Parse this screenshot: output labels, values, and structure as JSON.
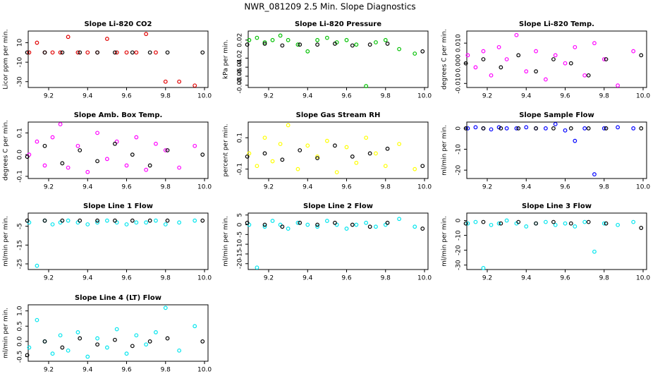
{
  "title": "NWR_081209  2.5 Min. Slope Diagnostics",
  "chart_data": [
    {
      "type": "scatter",
      "title": "Slope Li-820 CO2",
      "y_label": "Licor ppm per min.",
      "xlim": [
        9.095,
        10.018
      ],
      "xticks": [
        9.2,
        9.4,
        9.6,
        9.8,
        {
          "value": 10,
          "label": "10.0"
        }
      ],
      "ylim": [
        -36,
        22
      ],
      "yticks": [
        -30,
        -10,
        10
      ],
      "series": [
        {
          "color": "#e00000",
          "x": [
            9.1,
            9.14,
            9.18,
            9.22,
            9.26,
            9.3,
            9.35,
            9.4,
            9.45,
            9.5,
            9.55,
            9.6,
            9.65,
            9.7,
            9.75,
            9.8,
            9.87,
            9.95
          ],
          "values": [
            0,
            10,
            0,
            0,
            0,
            16,
            0,
            0,
            0,
            14,
            0,
            0,
            0,
            19,
            0,
            -30,
            -30,
            -34
          ]
        },
        {
          "color": "#000000",
          "x": [
            9.09,
            9.18,
            9.27,
            9.36,
            9.45,
            9.54,
            9.63,
            9.72,
            9.81,
            9.99
          ],
          "values": [
            0,
            0,
            0,
            0,
            0,
            0,
            0,
            0,
            0,
            0
          ]
        }
      ]
    },
    {
      "type": "scatter",
      "title": "Slope Li-820 Pressure",
      "y_label": "kPa per min.",
      "xlim": [
        9.095,
        10.018
      ],
      "xticks": [
        9.2,
        9.4,
        9.6,
        9.8,
        {
          "value": 10,
          "label": "10.0"
        }
      ],
      "ylim": [
        -0.085,
        0.04
      ],
      "yticks": [
        -0.08,
        -0.06,
        -0.04,
        -0.02,
        0.02
      ],
      "series": [
        {
          "color": "#00c000",
          "x": [
            9.1,
            9.14,
            9.18,
            9.22,
            9.26,
            9.3,
            9.35,
            9.4,
            9.45,
            9.5,
            9.55,
            9.6,
            9.65,
            9.7,
            9.75,
            9.8,
            9.87,
            9.95
          ],
          "values": [
            0.02,
            0.025,
            0.015,
            0.02,
            0.03,
            0.02,
            0.01,
            -0.005,
            0.02,
            0.025,
            0.015,
            0.02,
            0.01,
            -0.082,
            0.015,
            0.02,
            0.0,
            -0.01
          ]
        },
        {
          "color": "#000000",
          "x": [
            9.09,
            9.18,
            9.27,
            9.36,
            9.45,
            9.54,
            9.63,
            9.72,
            9.81,
            9.99
          ],
          "values": [
            0.01,
            0.012,
            0.008,
            0.01,
            0.01,
            0.012,
            0.008,
            0.01,
            0.012,
            -0.005
          ]
        }
      ]
    },
    {
      "type": "scatter",
      "title": "Slope Li-820 Temp.",
      "y_label": "degrees C per min.",
      "xlim": [
        9.095,
        10.018
      ],
      "xticks": [
        9.2,
        9.4,
        9.6,
        9.8,
        {
          "value": 10,
          "label": "10.0"
        }
      ],
      "ylim": [
        -0.012,
        0.016
      ],
      "yticks": [
        {
          "value": -0.01,
          "label": "-0.010"
        },
        {
          "value": 0,
          "label": "0.000"
        },
        {
          "value": 0.01,
          "label": "0.010"
        }
      ],
      "series": [
        {
          "color": "#ff00ff",
          "x": [
            9.1,
            9.14,
            9.18,
            9.22,
            9.26,
            9.3,
            9.35,
            9.4,
            9.45,
            9.5,
            9.55,
            9.6,
            9.65,
            9.7,
            9.75,
            9.8,
            9.87,
            9.95
          ],
          "values": [
            0.004,
            -0.002,
            0.006,
            -0.006,
            0.008,
            0.002,
            0.014,
            -0.004,
            0.006,
            -0.008,
            0.004,
            0.0,
            0.008,
            -0.006,
            0.01,
            0.002,
            -0.011,
            0.006
          ]
        },
        {
          "color": "#000000",
          "x": [
            9.09,
            9.18,
            9.27,
            9.36,
            9.45,
            9.54,
            9.63,
            9.72,
            9.81,
            9.99
          ],
          "values": [
            0.0,
            0.002,
            -0.002,
            0.004,
            -0.004,
            0.002,
            0.0,
            -0.006,
            0.002,
            0.004
          ]
        }
      ]
    },
    {
      "type": "scatter",
      "title": "Slope Amb. Box Temp.",
      "y_label": "degrees C per min.",
      "xlim": [
        9.095,
        10.018
      ],
      "xticks": [
        9.2,
        9.4,
        9.6,
        9.8,
        {
          "value": 10,
          "label": "10.0"
        }
      ],
      "ylim": [
        -0.11,
        0.15
      ],
      "yticks": [
        -0.1,
        {
          "value": 0,
          "label": "0.0"
        },
        0.1
      ],
      "series": [
        {
          "color": "#ff00ff",
          "x": [
            9.1,
            9.14,
            9.18,
            9.22,
            9.26,
            9.3,
            9.35,
            9.4,
            9.45,
            9.5,
            9.55,
            9.6,
            9.65,
            9.7,
            9.75,
            9.8,
            9.87,
            9.95
          ],
          "values": [
            0.0,
            0.06,
            -0.05,
            0.08,
            0.14,
            -0.06,
            0.04,
            -0.08,
            0.1,
            -0.02,
            0.06,
            -0.05,
            0.08,
            -0.07,
            0.05,
            0.02,
            -0.06,
            0.04
          ]
        },
        {
          "color": "#000000",
          "x": [
            9.09,
            9.18,
            9.27,
            9.36,
            9.45,
            9.54,
            9.63,
            9.72,
            9.81,
            9.99
          ],
          "values": [
            -0.01,
            0.04,
            -0.04,
            0.02,
            -0.03,
            0.05,
            0.0,
            -0.05,
            0.02,
            0.0
          ]
        }
      ]
    },
    {
      "type": "scatter",
      "title": "Slope Gas Stream RH",
      "y_label": "percent per min.",
      "xlim": [
        9.095,
        10.018
      ],
      "xticks": [
        9.2,
        9.4,
        9.6,
        9.8,
        {
          "value": 10,
          "label": "10.0"
        }
      ],
      "ylim": [
        -0.16,
        0.2
      ],
      "yticks": [
        -0.1,
        0.1
      ],
      "series": [
        {
          "color": "#ffff00",
          "x": [
            9.1,
            9.14,
            9.18,
            9.22,
            9.26,
            9.3,
            9.35,
            9.4,
            9.45,
            9.5,
            9.55,
            9.6,
            9.65,
            9.7,
            9.75,
            9.8,
            9.87,
            9.95
          ],
          "values": [
            0.0,
            -0.08,
            0.1,
            -0.05,
            0.06,
            0.18,
            -0.1,
            0.05,
            -0.02,
            0.08,
            -0.12,
            0.04,
            -0.06,
            0.1,
            0.0,
            -0.08,
            0.06,
            -0.1
          ]
        },
        {
          "color": "#000000",
          "x": [
            9.09,
            9.18,
            9.27,
            9.36,
            9.45,
            9.54,
            9.63,
            9.72,
            9.81,
            9.99
          ],
          "values": [
            -0.02,
            0.0,
            -0.04,
            0.02,
            -0.03,
            0.05,
            -0.02,
            0.0,
            0.03,
            -0.08
          ]
        }
      ]
    },
    {
      "type": "scatter",
      "title": "Slope Sample Flow",
      "y_label": "ml/min per min.",
      "xlim": [
        9.095,
        10.018
      ],
      "xticks": [
        9.2,
        9.4,
        9.6,
        9.8,
        {
          "value": 10,
          "label": "10.0"
        }
      ],
      "ylim": [
        -24,
        3
      ],
      "yticks": [
        -20,
        -10,
        0
      ],
      "series": [
        {
          "color": "#0000ff",
          "x": [
            9.1,
            9.14,
            9.18,
            9.22,
            9.26,
            9.3,
            9.35,
            9.4,
            9.45,
            9.5,
            9.55,
            9.6,
            9.65,
            9.7,
            9.75,
            9.8,
            9.87,
            9.95
          ],
          "values": [
            0,
            0.5,
            0,
            -0.5,
            0.5,
            0,
            0,
            0.5,
            0,
            0,
            2,
            -1,
            -6,
            0,
            -22,
            0,
            0.5,
            0
          ]
        },
        {
          "color": "#000000",
          "x": [
            9.09,
            9.18,
            9.27,
            9.36,
            9.45,
            9.54,
            9.63,
            9.72,
            9.81,
            9.99
          ],
          "values": [
            0,
            0,
            0,
            0,
            0,
            0,
            0,
            0,
            0,
            0
          ]
        }
      ]
    },
    {
      "type": "scatter",
      "title": "Slope Line 1 Flow",
      "y_label": "ml/min per min.",
      "xlim": [
        9.095,
        10.018
      ],
      "xticks": [
        9.2,
        9.4,
        9.6,
        9.8,
        {
          "value": 10,
          "label": "10.0"
        }
      ],
      "ylim": [
        -28,
        2
      ],
      "yticks": [
        -25,
        -15,
        -5
      ],
      "series": [
        {
          "color": "#00e5ee",
          "x": [
            9.1,
            9.14,
            9.18,
            9.22,
            9.26,
            9.3,
            9.35,
            9.4,
            9.45,
            9.5,
            9.55,
            9.6,
            9.65,
            9.7,
            9.75,
            9.8,
            9.87,
            9.95
          ],
          "values": [
            -3,
            -26,
            -2,
            -4,
            -3,
            -2,
            -3,
            -4,
            -3,
            -2,
            -3,
            -4,
            -3,
            -3,
            -2,
            -4,
            -3,
            -2
          ]
        },
        {
          "color": "#000000",
          "x": [
            9.09,
            9.18,
            9.27,
            9.36,
            9.45,
            9.54,
            9.63,
            9.72,
            9.81,
            9.99
          ],
          "values": [
            -2,
            -2,
            -2,
            -2,
            -2,
            -2,
            -2,
            -2,
            -2,
            -2
          ]
        }
      ]
    },
    {
      "type": "scatter",
      "title": "Slope Line 2 Flow",
      "y_label": "ml/min per min.",
      "xlim": [
        9.095,
        10.018
      ],
      "xticks": [
        9.2,
        9.4,
        9.6,
        9.8,
        {
          "value": 10,
          "label": "10.0"
        }
      ],
      "ylim": [
        -23,
        6
      ],
      "yticks": [
        -20,
        -15,
        -10,
        -5,
        0,
        5
      ],
      "series": [
        {
          "color": "#00e5ee",
          "x": [
            9.1,
            9.14,
            9.18,
            9.22,
            9.26,
            9.3,
            9.35,
            9.4,
            9.45,
            9.5,
            9.55,
            9.6,
            9.65,
            9.7,
            9.75,
            9.8,
            9.87,
            9.95
          ],
          "values": [
            0,
            -22,
            -1,
            2,
            0,
            -2,
            1,
            0,
            -1,
            2,
            0,
            -2,
            0,
            1,
            -1,
            0,
            3,
            -1
          ]
        },
        {
          "color": "#000000",
          "x": [
            9.09,
            9.18,
            9.27,
            9.36,
            9.45,
            9.54,
            9.63,
            9.72,
            9.81,
            9.99
          ],
          "values": [
            1,
            0,
            -1,
            1,
            0,
            1,
            0,
            -1,
            1,
            -2
          ]
        }
      ]
    },
    {
      "type": "scatter",
      "title": "Slope Line 3 Flow",
      "y_label": "ml/min per min.",
      "xlim": [
        9.095,
        10.018
      ],
      "xticks": [
        9.2,
        9.4,
        9.6,
        9.8,
        {
          "value": 10,
          "label": "10.0"
        }
      ],
      "ylim": [
        -33,
        5
      ],
      "yticks": [
        -30,
        -20,
        -10,
        0
      ],
      "series": [
        {
          "color": "#00e5ee",
          "x": [
            9.1,
            9.14,
            9.18,
            9.22,
            9.26,
            9.3,
            9.35,
            9.4,
            9.45,
            9.5,
            9.55,
            9.6,
            9.65,
            9.7,
            9.75,
            9.8,
            9.87,
            9.95
          ],
          "values": [
            -2,
            -1,
            -32,
            -3,
            -2,
            0,
            -2,
            -4,
            -2,
            -1,
            -3,
            -2,
            -4,
            -1,
            -21,
            -2,
            -3,
            -1
          ]
        },
        {
          "color": "#000000",
          "x": [
            9.09,
            9.18,
            9.27,
            9.36,
            9.45,
            9.54,
            9.63,
            9.72,
            9.81,
            9.99
          ],
          "values": [
            -2,
            -1,
            -2,
            -1,
            -2,
            -1,
            -2,
            -1,
            -2,
            -5
          ]
        }
      ]
    },
    {
      "type": "scatter",
      "title": "Slope Line 4 (LT) Flow",
      "y_label": "ml/min per min.",
      "xlim": [
        9.095,
        10.018
      ],
      "xticks": [
        9.2,
        9.4,
        9.6,
        9.8,
        {
          "value": 10,
          "label": "10.0"
        }
      ],
      "ylim": [
        -0.65,
        1.2
      ],
      "yticks": [
        -0.5,
        {
          "value": 0,
          "label": "0.0"
        },
        0.5,
        {
          "value": 1,
          "label": "1.0"
        }
      ],
      "series": [
        {
          "color": "#00e5ee",
          "x": [
            9.1,
            9.14,
            9.18,
            9.22,
            9.26,
            9.3,
            9.35,
            9.4,
            9.45,
            9.5,
            9.55,
            9.6,
            9.65,
            9.7,
            9.75,
            9.8,
            9.87,
            9.95
          ],
          "values": [
            -0.2,
            0.7,
            0.0,
            -0.4,
            0.2,
            -0.3,
            0.3,
            -0.5,
            0.1,
            -0.2,
            0.4,
            -0.4,
            0.2,
            -0.1,
            0.3,
            1.1,
            -0.3,
            0.5
          ]
        },
        {
          "color": "#000000",
          "x": [
            9.09,
            9.18,
            9.27,
            9.36,
            9.45,
            9.54,
            9.63,
            9.72,
            9.81,
            9.99
          ],
          "values": [
            -0.45,
            0.0,
            -0.2,
            0.1,
            -0.1,
            0.05,
            -0.15,
            0.0,
            0.1,
            0.0
          ]
        }
      ]
    }
  ]
}
